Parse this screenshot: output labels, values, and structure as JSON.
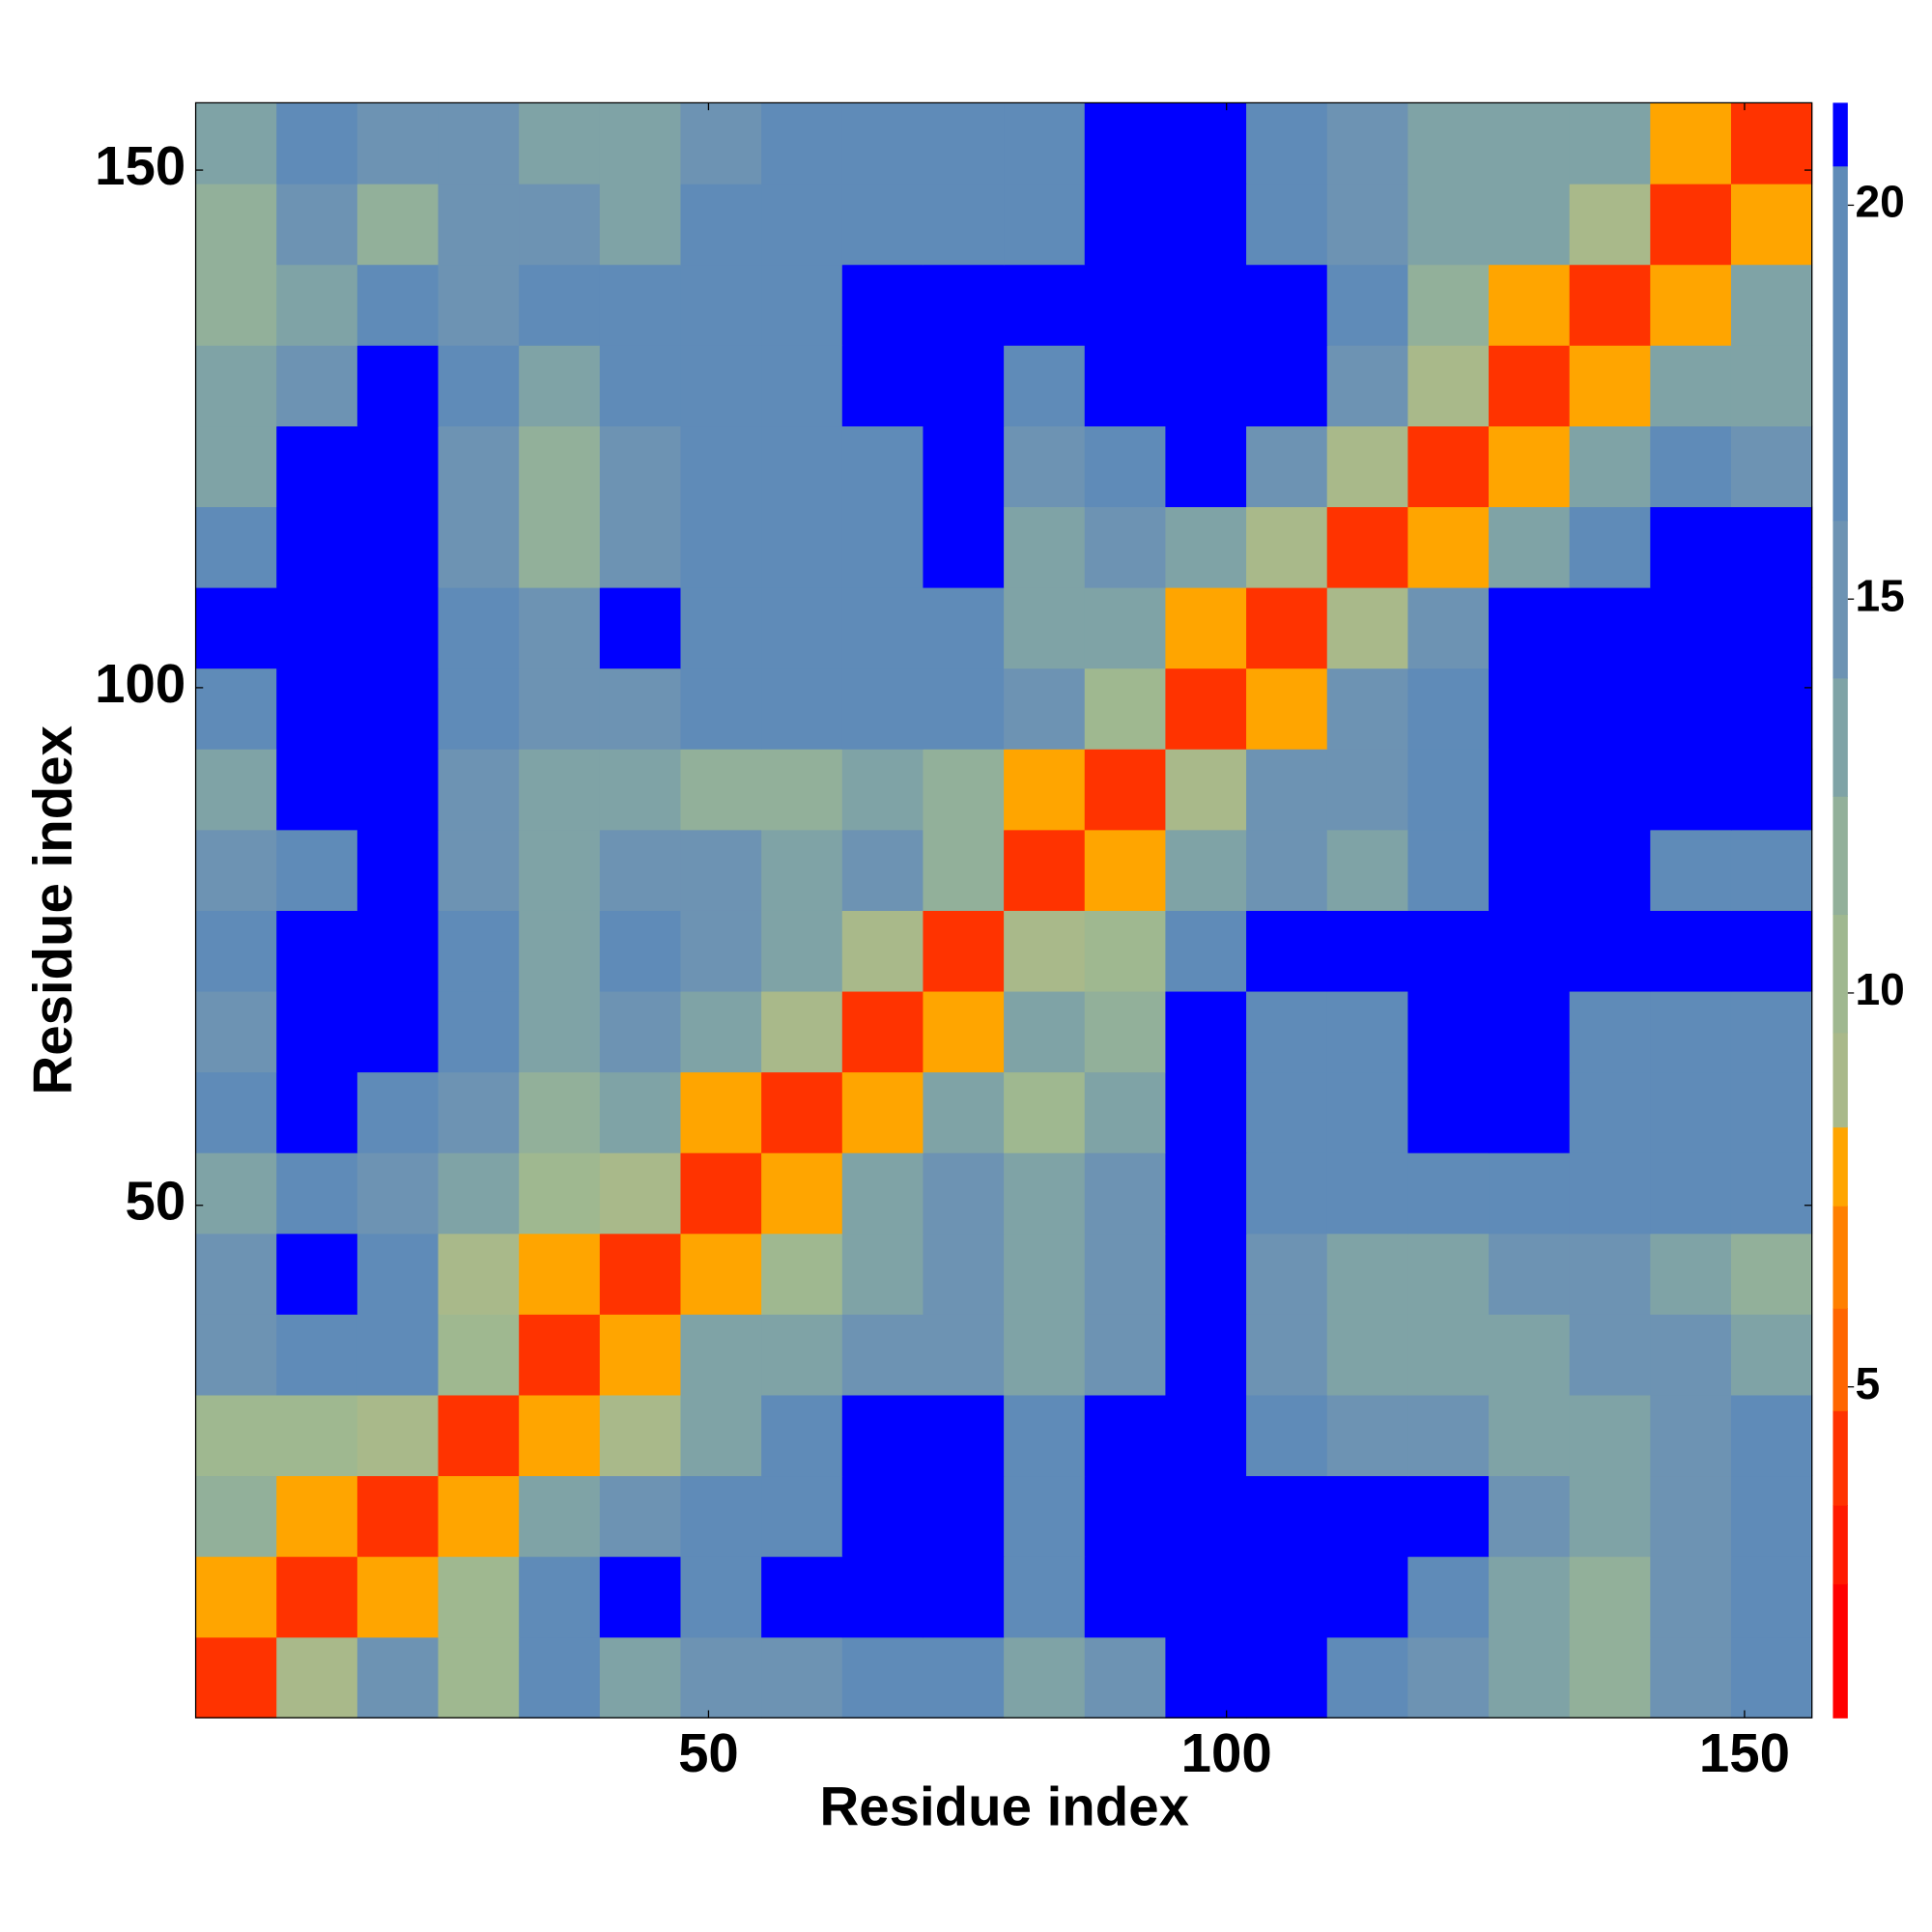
{
  "chart_data": {
    "type": "heatmap",
    "x_label": "Residue index",
    "y_label": "Residue index",
    "x": [
      4.4,
      12.2,
      20,
      27.8,
      35.6,
      43.4,
      51.2,
      59,
      66.8,
      74.6,
      82.4,
      90.2,
      98,
      105.8,
      113.6,
      121.4,
      129.2,
      137,
      144.8,
      152.6
    ],
    "y": [
      4.4,
      12.2,
      20,
      27.8,
      35.6,
      43.4,
      51.2,
      59,
      66.8,
      74.6,
      82.4,
      90.2,
      98,
      105.8,
      113.6,
      121.4,
      129.2,
      137,
      144.8,
      152.6
    ],
    "values": [
      [
        4,
        9,
        15,
        11,
        20,
        14,
        15,
        16,
        17,
        20,
        14,
        16,
        21,
        21,
        17,
        16,
        14,
        12,
        15,
        17
      ],
      [
        8,
        4,
        8,
        11,
        18,
        21,
        20,
        21,
        21,
        21,
        19,
        21,
        21,
        21,
        21,
        18,
        14,
        12,
        15,
        19
      ],
      [
        12,
        8,
        4,
        8,
        14,
        16,
        17,
        20,
        21,
        21,
        18,
        21,
        21,
        21,
        21,
        21,
        15,
        13,
        16,
        20
      ],
      [
        11,
        11,
        9,
        4,
        8,
        9,
        14,
        17,
        21,
        21,
        18,
        21,
        21,
        19,
        16,
        16,
        14,
        14,
        16,
        17
      ],
      [
        16,
        20,
        18,
        10,
        4,
        8,
        14,
        14,
        15,
        15,
        14,
        16,
        21,
        16,
        13,
        13,
        14,
        16,
        15,
        14
      ],
      [
        15,
        21,
        18,
        9,
        8,
        4,
        8,
        11,
        14,
        15,
        14,
        16,
        21,
        16,
        13,
        14,
        15,
        15,
        13,
        12
      ],
      [
        14,
        18,
        15,
        13,
        11,
        9,
        4,
        8,
        13,
        15,
        13,
        16,
        21,
        19,
        17,
        17,
        19,
        18,
        17,
        17
      ],
      [
        17,
        21,
        20,
        16,
        12,
        13,
        8,
        4,
        8,
        13,
        10,
        13,
        21,
        18,
        17,
        21,
        21,
        19,
        18,
        19
      ],
      [
        16,
        21,
        21,
        17,
        13,
        15,
        13,
        9,
        4,
        8,
        14,
        12,
        21,
        18,
        18,
        21,
        21,
        20,
        18,
        18
      ],
      [
        19,
        21,
        21,
        20,
        14,
        17,
        15,
        13,
        9,
        4,
        9,
        11,
        20,
        21,
        21,
        21,
        21,
        21,
        21,
        21
      ],
      [
        15,
        18,
        21,
        16,
        13,
        15,
        15,
        13,
        15,
        12,
        4,
        8,
        14,
        15,
        14,
        17,
        21,
        21,
        19,
        20
      ],
      [
        14,
        21,
        21,
        15,
        13,
        14,
        12,
        12,
        14,
        12,
        8,
        4,
        9,
        15,
        15,
        19,
        21,
        21,
        21,
        21
      ],
      [
        17,
        21,
        21,
        18,
        16,
        16,
        17,
        18,
        18,
        17,
        15,
        10,
        4,
        8,
        16,
        20,
        21,
        21,
        21,
        21
      ],
      [
        21,
        21,
        21,
        18,
        16,
        21,
        18,
        19,
        18,
        17,
        14,
        14,
        8,
        4,
        9,
        16,
        21,
        21,
        21,
        21
      ],
      [
        18,
        21,
        21,
        16,
        12,
        16,
        19,
        18,
        18,
        21,
        14,
        16,
        13,
        9,
        4,
        8,
        14,
        20,
        21,
        21
      ],
      [
        14,
        21,
        21,
        15,
        12,
        16,
        20,
        18,
        19,
        21,
        15,
        18,
        21,
        16,
        9,
        4,
        8,
        14,
        17,
        15
      ],
      [
        14,
        16,
        21,
        17,
        14,
        18,
        20,
        20,
        21,
        21,
        19,
        21,
        21,
        21,
        16,
        9,
        4,
        8,
        13,
        14
      ],
      [
        12,
        13,
        17,
        15,
        18,
        17,
        20,
        20,
        21,
        21,
        21,
        21,
        21,
        21,
        17,
        12,
        8,
        4,
        8,
        13
      ],
      [
        12,
        16,
        12,
        15,
        15,
        13,
        18,
        19,
        20,
        20,
        19,
        21,
        21,
        19,
        16,
        14,
        14,
        9,
        4,
        8
      ],
      [
        14,
        18,
        16,
        15,
        14,
        13,
        16,
        17,
        20,
        20,
        18,
        21,
        21,
        19,
        15,
        14,
        13,
        13,
        8,
        4
      ]
    ],
    "xlim": [
      0.5,
      156.5
    ],
    "ylim": [
      0.5,
      156.5
    ],
    "xticks": [
      50,
      100,
      150
    ],
    "yticks": [
      50,
      100,
      150
    ],
    "zlim": [
      0.8,
      21.3
    ],
    "zticks": [
      5,
      10,
      15,
      20
    ],
    "color_bounds": [
      0.8,
      2.5,
      3.5,
      4.7,
      6,
      7.3,
      8.3,
      9.5,
      11,
      12.5,
      14,
      16,
      20.5,
      21.3
    ],
    "colors": [
      "#ff0000",
      "#ff1a00",
      "#ff3300",
      "#ff6600",
      "#ff8000",
      "#ffa500",
      "#a9b98a",
      "#9fb890",
      "#92b09a",
      "#7fa3a6",
      "#6d93b3",
      "#5f8bb8",
      "#0000ff"
    ]
  }
}
